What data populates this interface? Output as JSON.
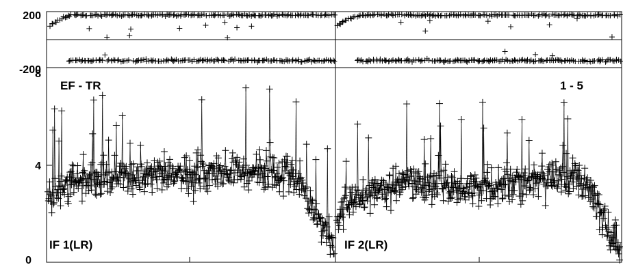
{
  "chart_data": [
    {
      "type": "scatter",
      "panel": "phase",
      "title": "",
      "xlabel": "",
      "ylabel": "",
      "ylim": [
        -200,
        200
      ],
      "yticks": [
        "200",
        "-200"
      ],
      "grid": true,
      "sub_panels": 2,
      "series": [
        {
          "marker": "plus",
          "segments": [
            {
              "sub_panel": 1,
              "branch": "upper",
              "level": 175,
              "spread": 12,
              "ramp_from": 60
            },
            {
              "sub_panel": 1,
              "branch": "lower",
              "level": -150,
              "spread": 14,
              "ramp_from": 0
            },
            {
              "sub_panel": 2,
              "branch": "upper",
              "level": 175,
              "spread": 12,
              "ramp_from": 80
            },
            {
              "sub_panel": 2,
              "branch": "lower",
              "level": -150,
              "spread": 16,
              "ramp_from": 0
            }
          ]
        }
      ]
    },
    {
      "type": "scatter",
      "panel": "amplitude",
      "title": "",
      "xlabel": "",
      "ylabel": "",
      "ylim": [
        0,
        8
      ],
      "yticks": [
        "0",
        "4",
        "8"
      ],
      "grid": true,
      "sub_panels": 2,
      "series": [
        {
          "marker": "plus",
          "profile": [
            {
              "sub_panel": 1,
              "x": [
                0.0,
                0.05,
                0.2,
                0.5,
                0.7,
                0.85,
                0.93,
                1.0
              ],
              "y": [
                2.6,
                3.1,
                3.5,
                3.6,
                3.8,
                3.6,
                2.2,
                0.8
              ]
            },
            {
              "sub_panel": 2,
              "x": [
                0.0,
                0.05,
                0.2,
                0.5,
                0.8,
                0.88,
                0.95,
                1.0
              ],
              "y": [
                1.8,
                2.6,
                3.2,
                3.1,
                3.5,
                3.3,
                1.5,
                0.6
              ]
            }
          ]
        }
      ]
    }
  ],
  "annotations": {
    "baseline": "EF - TR",
    "channels": "1 - 5",
    "if1": "IF 1(LR)",
    "if2": "IF 2(LR)"
  }
}
